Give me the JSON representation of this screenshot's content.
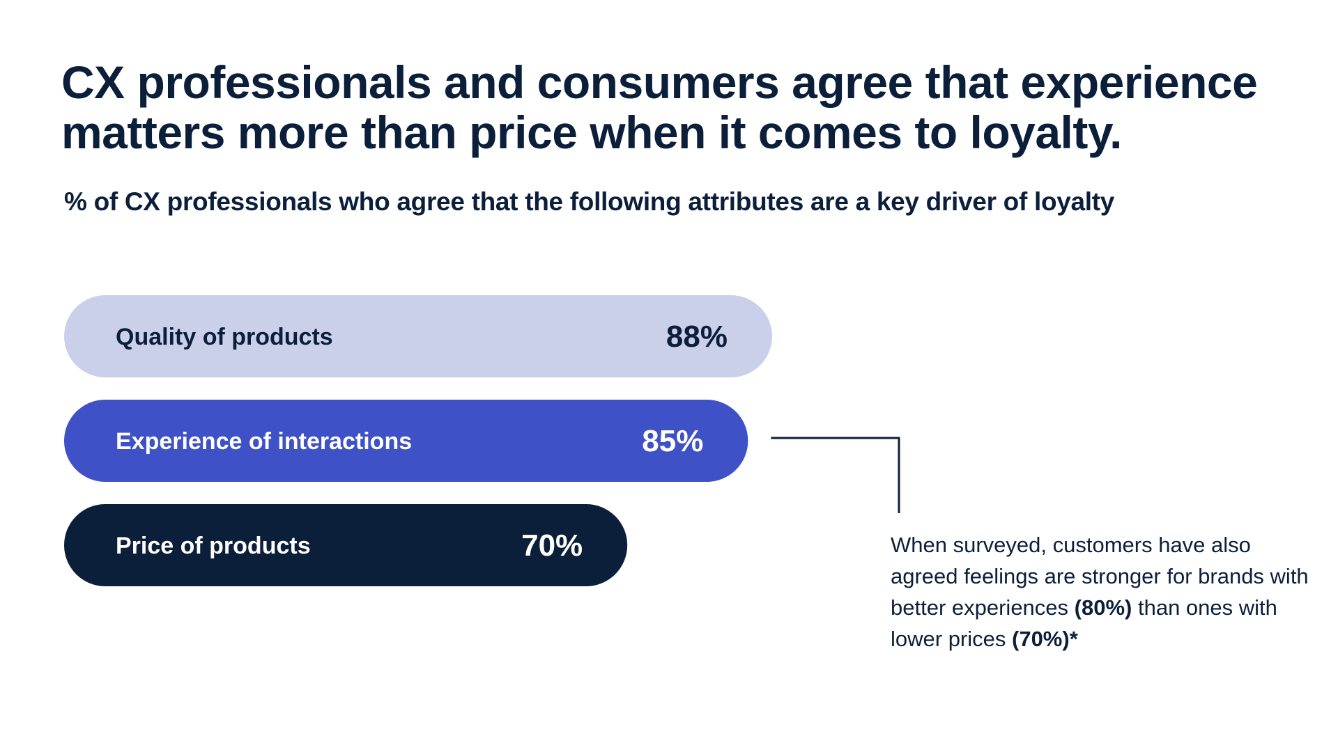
{
  "chart_data": {
    "type": "bar",
    "orientation": "horizontal",
    "title": "CX professionals and consumers agree that experience matters more than price when it comes to loyalty.",
    "subtitle": "% of CX professionals who agree that the following attributes are a key driver of loyalty",
    "xlabel": "",
    "ylabel": "",
    "grid": false,
    "legend": "none",
    "categories": [
      "Quality of products",
      "Experience of interactions",
      "Price of products"
    ],
    "values": [
      88,
      85,
      70
    ],
    "value_labels": [
      "88%",
      "85%",
      "70%"
    ],
    "bar_colors": [
      "#cbd0ea",
      "#3f51c6",
      "#0b1f3a"
    ],
    "label_colors": [
      "#0b1f3a",
      "#ffffff",
      "#ffffff"
    ]
  },
  "callout": {
    "target_category": "Experience of interactions",
    "text_1": "When surveyed, customers have also agreed feelings are stronger for brands with better experiences ",
    "stat_1": "(80%)",
    "text_2": " than ones with lower prices ",
    "stat_2": "(70%)*",
    "line_color": "#0b1f3a"
  }
}
